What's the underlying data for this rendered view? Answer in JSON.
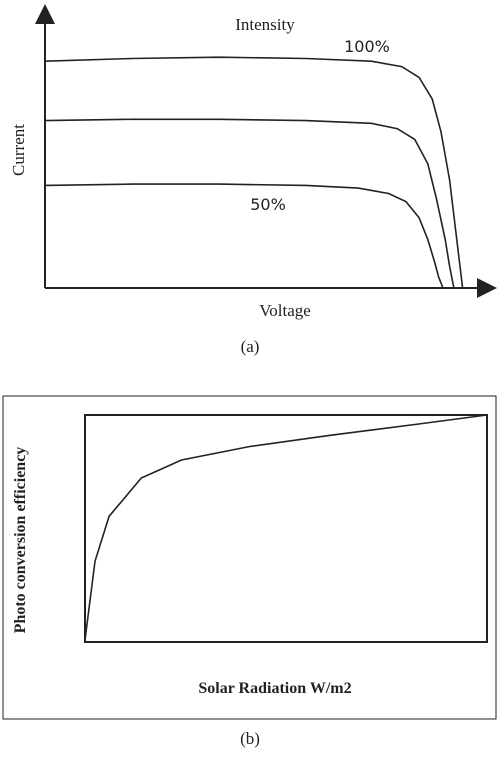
{
  "chart_data": [
    {
      "type": "line",
      "title": "(a)",
      "x_label": "Voltage",
      "y_label": "Current",
      "annotations": [
        "Intensity",
        "100%",
        "50%"
      ],
      "xlim": [
        0,
        100
      ],
      "ylim": [
        0,
        100
      ],
      "series": [
        {
          "color": "#222222",
          "x": [
            0,
            20,
            40,
            60,
            75,
            82,
            86,
            89,
            91,
            93,
            94.5,
            96
          ],
          "values": [
            84,
            85,
            85.5,
            85,
            84,
            82,
            78,
            70,
            58,
            40,
            20,
            0
          ]
        },
        {
          "color": "#222222",
          "x": [
            0,
            20,
            40,
            60,
            75,
            81,
            85,
            88,
            90,
            92,
            93,
            94
          ],
          "values": [
            62,
            62.5,
            62.5,
            62,
            61,
            59,
            55,
            46,
            33,
            18,
            8,
            0
          ]
        },
        {
          "color": "#222222",
          "x": [
            0,
            20,
            40,
            60,
            72,
            79,
            83,
            86,
            88,
            89.5,
            90.5,
            91.5
          ],
          "values": [
            38,
            38.5,
            38.5,
            38,
            37,
            35,
            32,
            26,
            18,
            10,
            4,
            0
          ]
        }
      ]
    },
    {
      "type": "line",
      "title": "(b)",
      "x_label": "Solar Radiation W/m2",
      "y_label": "Photo conversion efficiency",
      "xlim": [
        0,
        100
      ],
      "ylim": [
        0,
        100
      ],
      "series": [
        {
          "color": "#222222",
          "x": [
            0,
            2.5,
            6,
            14,
            24,
            41,
            61,
            83,
            100
          ],
          "values": [
            0,
            35,
            55,
            72,
            80,
            86,
            91,
            96,
            100
          ]
        }
      ]
    }
  ]
}
